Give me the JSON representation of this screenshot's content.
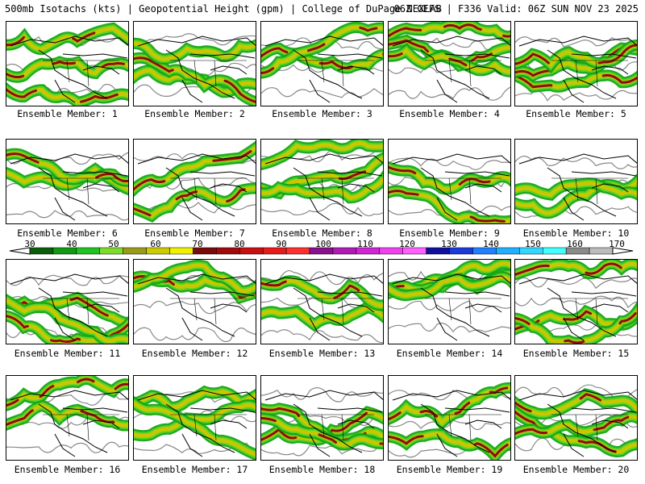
{
  "title": {
    "left": "500mb Isotachs (kts) | Geopotential Height (gpm) | College of DuPage NEXLAB",
    "right": "06Z GEFS | F336 Valid: 06Z SUN NOV 23 2025"
  },
  "colorbar": {
    "labels": [
      "30",
      "40",
      "50",
      "60",
      "70",
      "80",
      "90",
      "100",
      "110",
      "120",
      "130",
      "140",
      "150",
      "160",
      "170"
    ],
    "colors": [
      "#0a5e0a",
      "#119a11",
      "#1fc41f",
      "#7ddc2a",
      "#9a9a1a",
      "#cccc00",
      "#f0f000",
      "#7a0a0a",
      "#a00a0a",
      "#c81010",
      "#e81a1a",
      "#ff3030",
      "#8a1090",
      "#b01ab8",
      "#d224d8",
      "#f040f0",
      "#ff60ff",
      "#1010a0",
      "#1a3adc",
      "#2080ff",
      "#20b0ff",
      "#30d8ff",
      "#40ffff",
      "#8a8a8a",
      "#bcbcbc"
    ]
  },
  "members": [
    {
      "label": "Ensemble Member: 1"
    },
    {
      "label": "Ensemble Member: 2"
    },
    {
      "label": "Ensemble Member: 3"
    },
    {
      "label": "Ensemble Member: 4"
    },
    {
      "label": "Ensemble Member: 5"
    },
    {
      "label": "Ensemble Member: 6"
    },
    {
      "label": "Ensemble Member: 7"
    },
    {
      "label": "Ensemble Member: 8"
    },
    {
      "label": "Ensemble Member: 9"
    },
    {
      "label": "Ensemble Member: 10"
    },
    {
      "label": "Ensemble Member: 11"
    },
    {
      "label": "Ensemble Member: 12"
    },
    {
      "label": "Ensemble Member: 13"
    },
    {
      "label": "Ensemble Member: 14"
    },
    {
      "label": "Ensemble Member: 15"
    },
    {
      "label": "Ensemble Member: 16"
    },
    {
      "label": "Ensemble Member: 17"
    },
    {
      "label": "Ensemble Member: 18"
    },
    {
      "label": "Ensemble Member: 19"
    },
    {
      "label": "Ensemble Member: 20"
    }
  ]
}
